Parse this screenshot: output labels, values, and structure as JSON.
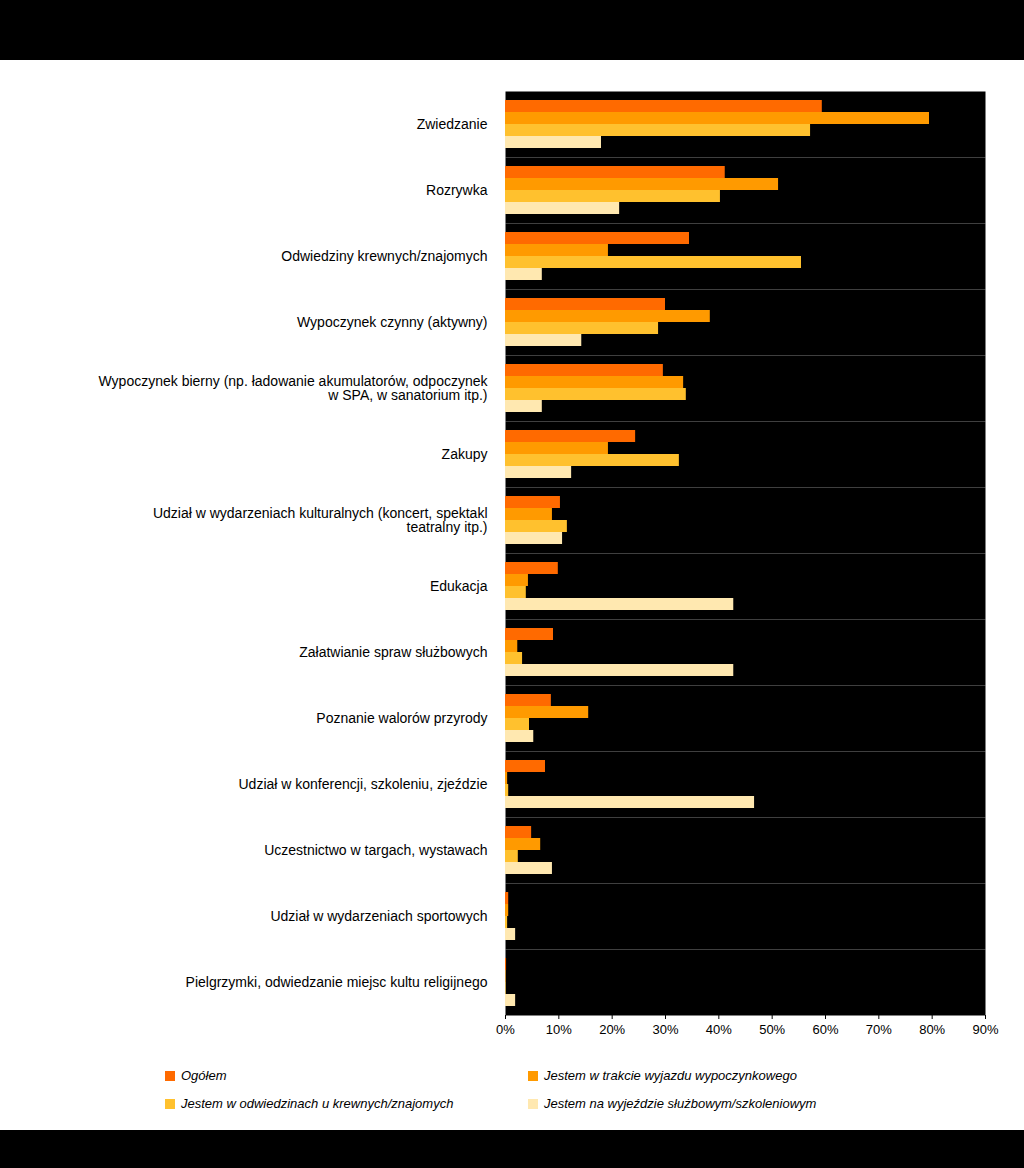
{
  "chart_data": {
    "type": "bar",
    "orientation": "horizontal",
    "categories": [
      "Zwiedzanie",
      "Rozrywka",
      "Odwiedziny krewnych/znajomych",
      "Wypoczynek czynny (aktywny)",
      "Wypoczynek bierny (np. ładowanie akumulatorów, odpoczynek w SPA, w sanatorium itp.)",
      "Zakupy",
      "Udział w wydarzeniach kulturalnych (koncert, spektakl teatralny itp.)",
      "Edukacja",
      "Załatwianie spraw służbowych",
      "Poznanie walorów przyrody",
      "Udział w konferencji, szkoleniu, zjeździe",
      "Uczestnictwo w targach, wystawach",
      "Udział w wydarzeniach sportowych",
      "Pielgrzymki, odwiedzanie miejsc kultu religijnego"
    ],
    "series": [
      {
        "name": "Ogółem",
        "color": "#ff6a00",
        "values": [
          59.4,
          41.2,
          34.5,
          30.0,
          29.6,
          24.4,
          10.3,
          9.9,
          9.0,
          8.6,
          7.5,
          4.9,
          0.6,
          0.2
        ]
      },
      {
        "name": "Jestem w trakcie wyjazdu wypoczynkowego",
        "color": "#ff9a00",
        "values": [
          79.5,
          51.2,
          19.3,
          38.4,
          33.4,
          19.3,
          8.8,
          4.3,
          2.3,
          15.6,
          0.4,
          6.6,
          0.6,
          0.1
        ]
      },
      {
        "name": "Jestem w odwiedzinach u krewnych/znajomych",
        "color": "#ffc12e",
        "values": [
          57.2,
          40.3,
          55.5,
          28.7,
          33.9,
          32.6,
          11.6,
          3.9,
          3.2,
          4.5,
          0.6,
          2.4,
          0.4,
          0.1
        ]
      },
      {
        "name": "Jestem na wyjeździe służbowym/szkoleniowym",
        "color": "#ffe8b0",
        "values": [
          18.0,
          21.4,
          6.9,
          14.3,
          6.9,
          12.4,
          10.7,
          42.8,
          42.8,
          5.3,
          46.7,
          8.8,
          1.9,
          1.9
        ]
      }
    ],
    "xlim": [
      0,
      90
    ],
    "xticks": [
      {
        "value": 0,
        "label": "0%"
      },
      {
        "value": 10,
        "label": "10%"
      },
      {
        "value": 20,
        "label": "20%"
      },
      {
        "value": 30,
        "label": "30%"
      },
      {
        "value": 40,
        "label": "40%"
      },
      {
        "value": 50,
        "label": "50%"
      },
      {
        "value": 60,
        "label": "60%"
      },
      {
        "value": 70,
        "label": "70%"
      },
      {
        "value": 80,
        "label": "80%"
      },
      {
        "value": 90,
        "label": "90%"
      }
    ],
    "grid": false,
    "legend": "bottom"
  }
}
